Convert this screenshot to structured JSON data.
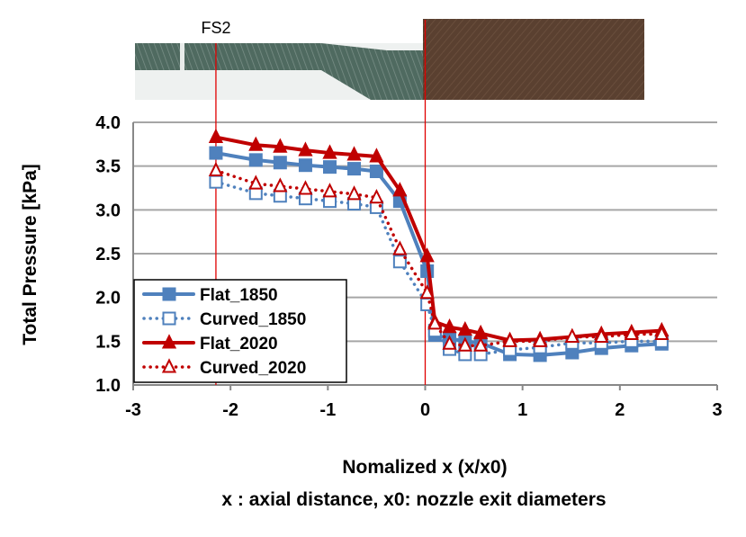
{
  "diagram": {
    "label": "FS2",
    "nozzle_color": "#4f6a60",
    "plate_color": "#5a4030"
  },
  "chart_data": {
    "type": "line",
    "title": "",
    "xlabel": "Nomalized x (x/x0)",
    "xlabel_note": "x : axial distance, x0: nozzle exit diameters",
    "ylabel": "Total Pressure [kPa]",
    "xlim": [
      -3,
      3
    ],
    "ylim": [
      1.0,
      4.0
    ],
    "xticks": [
      "-3",
      "-2",
      "-1",
      "0",
      "1",
      "2",
      "3"
    ],
    "yticks": [
      "1.0",
      "1.5",
      "2.0",
      "2.5",
      "3.0",
      "3.5",
      "4.0"
    ],
    "grid": "horizontal",
    "legend_position": "bottom-left",
    "reference_lines_x": [
      -2.15,
      0
    ],
    "x": [
      -2.15,
      -1.74,
      -1.49,
      -1.23,
      -0.98,
      -0.73,
      -0.5,
      -0.26,
      0.02,
      0.1,
      0.25,
      0.41,
      0.57,
      0.87,
      1.18,
      1.51,
      1.81,
      2.12,
      2.43
    ],
    "series": [
      {
        "name": "Flat_1850",
        "color": "#4f81bd",
        "style": "solid",
        "marker": "square-filled",
        "values": [
          3.65,
          3.57,
          3.54,
          3.51,
          3.49,
          3.47,
          3.44,
          3.1,
          2.3,
          1.57,
          1.53,
          1.5,
          1.48,
          1.35,
          1.34,
          1.37,
          1.42,
          1.45,
          1.47
        ]
      },
      {
        "name": "Curved_1850",
        "color": "#4f81bd",
        "style": "dotted",
        "marker": "square-open",
        "values": [
          3.32,
          3.19,
          3.16,
          3.13,
          3.1,
          3.07,
          3.03,
          2.41,
          1.92,
          1.62,
          1.41,
          1.35,
          1.35,
          1.4,
          1.43,
          1.48,
          1.48,
          1.5,
          1.5
        ]
      },
      {
        "name": "Flat_2020",
        "color": "#c00000",
        "style": "solid",
        "marker": "triangle-filled",
        "values": [
          3.83,
          3.74,
          3.72,
          3.68,
          3.65,
          3.63,
          3.61,
          3.22,
          2.47,
          1.72,
          1.66,
          1.63,
          1.59,
          1.51,
          1.52,
          1.55,
          1.58,
          1.6,
          1.62
        ]
      },
      {
        "name": "Curved_2020",
        "color": "#c00000",
        "style": "dotted",
        "marker": "triangle-open",
        "values": [
          3.45,
          3.3,
          3.27,
          3.24,
          3.21,
          3.18,
          3.14,
          2.55,
          2.05,
          1.7,
          1.47,
          1.45,
          1.45,
          1.5,
          1.5,
          1.55,
          1.55,
          1.58,
          1.58
        ]
      }
    ]
  }
}
